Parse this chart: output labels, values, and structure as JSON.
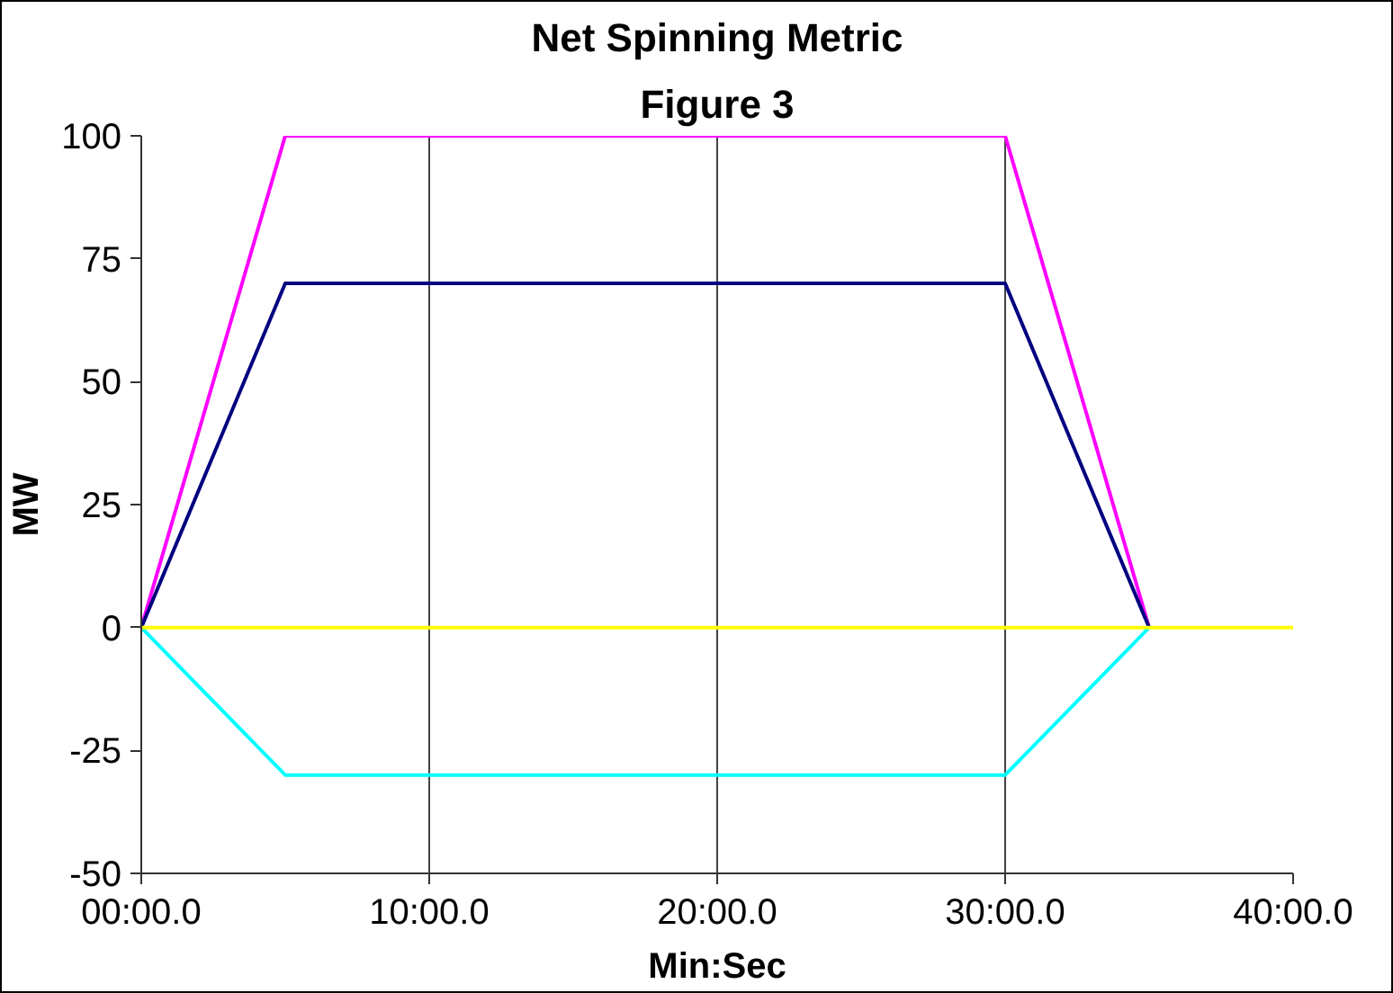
{
  "chart_data": {
    "type": "line",
    "title": "Net Spinning Metric",
    "subtitle": "Figure 3",
    "xlabel": "Min:Sec",
    "ylabel": "MW",
    "categories": [
      "00:00.0",
      null,
      "10:00.0",
      null,
      "20:00.0",
      null,
      "30:00.0",
      null,
      "40:00.0"
    ],
    "series": [
      {
        "color": "#ff00ff",
        "values": [
          0,
          100,
          100,
          100,
          100,
          100,
          100,
          0,
          null
        ]
      },
      {
        "color": "#000080",
        "values": [
          0,
          70,
          70,
          70,
          70,
          70,
          70,
          0,
          null
        ]
      },
      {
        "color": "#00ffff",
        "values": [
          0,
          -30,
          -30,
          -30,
          -30,
          -30,
          -30,
          0,
          null
        ]
      },
      {
        "color": "#ffff00",
        "values": [
          0,
          0,
          0,
          0,
          0,
          0,
          0,
          0,
          0
        ]
      }
    ],
    "ylim": [
      -50,
      100
    ],
    "yticks": [
      -50,
      -25,
      0,
      25,
      50,
      75,
      100
    ],
    "grid": "x",
    "legend": false,
    "marker": "none",
    "line_style": "solid"
  }
}
